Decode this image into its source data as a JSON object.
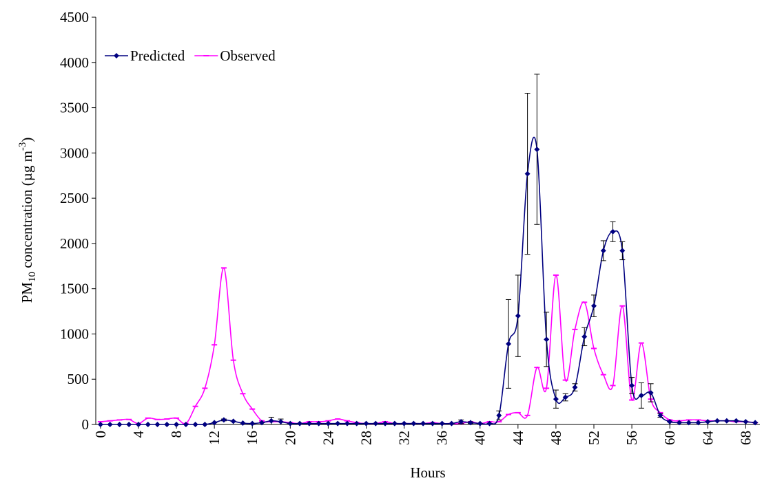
{
  "chart_data": {
    "type": "line",
    "xlabel": "Hours",
    "ylabel_parts": [
      "PM",
      "10",
      " concentration (µg m",
      "-3",
      ")"
    ],
    "x": [
      0,
      1,
      2,
      3,
      4,
      5,
      6,
      7,
      8,
      9,
      10,
      11,
      12,
      13,
      14,
      15,
      16,
      17,
      18,
      19,
      20,
      21,
      22,
      23,
      24,
      25,
      26,
      27,
      28,
      29,
      30,
      31,
      32,
      33,
      34,
      35,
      36,
      37,
      38,
      39,
      40,
      41,
      42,
      43,
      44,
      45,
      46,
      47,
      48,
      49,
      50,
      51,
      52,
      53,
      54,
      55,
      56,
      57,
      58,
      59,
      60,
      61,
      62,
      63,
      64,
      65,
      66,
      67,
      68,
      69
    ],
    "xlim": [
      -0.5,
      69.5
    ],
    "xticks": [
      0,
      4,
      8,
      12,
      16,
      20,
      24,
      28,
      32,
      36,
      40,
      44,
      48,
      52,
      56,
      60,
      64,
      68
    ],
    "ylim": [
      0,
      4500
    ],
    "yticks": [
      0,
      500,
      1000,
      1500,
      2000,
      2500,
      3000,
      3500,
      4000,
      4500
    ],
    "legend": "top-left",
    "series": [
      {
        "name": "Predicted",
        "color": "#000080",
        "marker": "diamond",
        "values": [
          0,
          0,
          0,
          0,
          0,
          0,
          0,
          0,
          0,
          0,
          0,
          0,
          20,
          50,
          35,
          15,
          10,
          20,
          40,
          30,
          10,
          10,
          10,
          10,
          10,
          10,
          10,
          10,
          10,
          10,
          10,
          10,
          10,
          10,
          10,
          10,
          10,
          10,
          30,
          20,
          10,
          10,
          100,
          890,
          1200,
          2770,
          3040,
          940,
          280,
          300,
          410,
          970,
          1310,
          1920,
          2130,
          1920,
          430,
          320,
          350,
          100,
          30,
          20,
          20,
          20,
          30,
          40,
          40,
          40,
          30,
          20
        ],
        "errors": [
          0,
          0,
          0,
          0,
          0,
          0,
          0,
          0,
          0,
          0,
          0,
          0,
          0,
          10,
          0,
          0,
          0,
          0,
          40,
          30,
          0,
          0,
          0,
          0,
          0,
          0,
          0,
          0,
          0,
          0,
          0,
          0,
          0,
          0,
          0,
          0,
          0,
          0,
          20,
          10,
          0,
          0,
          50,
          490,
          450,
          890,
          830,
          300,
          100,
          40,
          40,
          100,
          120,
          110,
          110,
          100,
          90,
          140,
          100,
          20,
          0,
          0,
          0,
          0,
          0,
          0,
          0,
          0,
          0,
          0
        ]
      },
      {
        "name": "Observed",
        "color": "#ff00ff",
        "marker": "dash",
        "values": [
          30,
          40,
          50,
          55,
          10,
          70,
          55,
          60,
          70,
          10,
          200,
          400,
          880,
          1730,
          710,
          340,
          170,
          40,
          30,
          30,
          20,
          10,
          30,
          30,
          40,
          60,
          40,
          20,
          10,
          10,
          30,
          10,
          10,
          10,
          10,
          20,
          10,
          10,
          10,
          30,
          10,
          30,
          30,
          110,
          130,
          100,
          630,
          400,
          1650,
          490,
          1050,
          1350,
          840,
          550,
          430,
          1310,
          270,
          900,
          280,
          130,
          50,
          40,
          50,
          50,
          40,
          40,
          40,
          30,
          30,
          20
        ]
      }
    ]
  }
}
